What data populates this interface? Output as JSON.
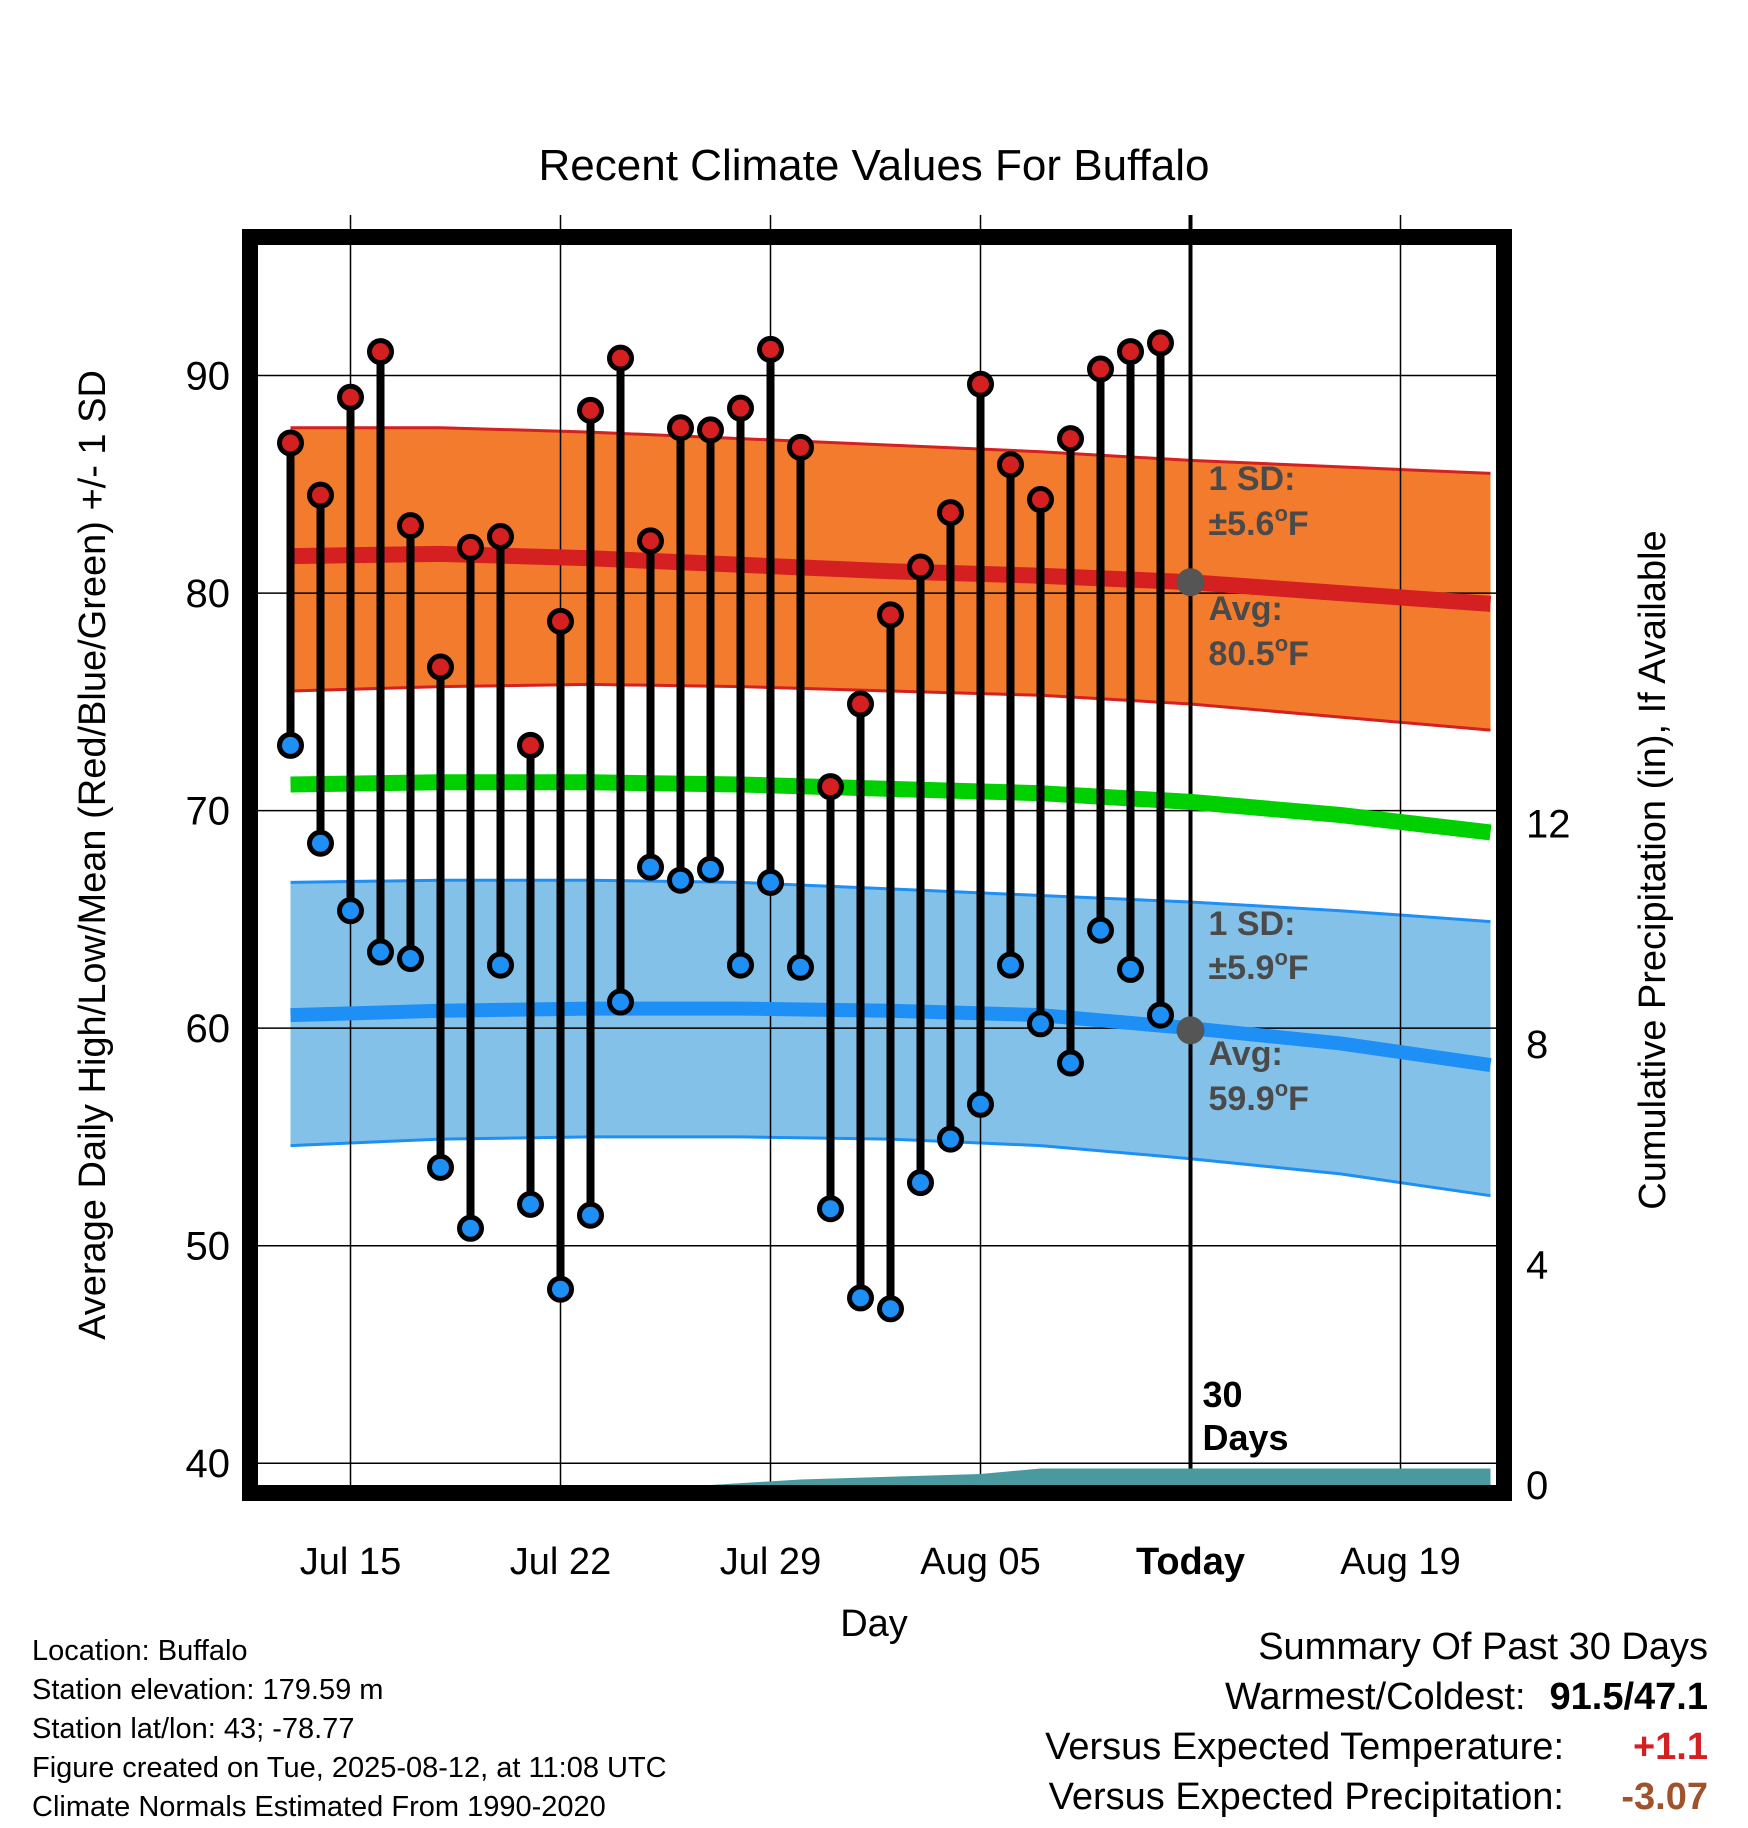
{
  "chart_data": {
    "type": "line",
    "title": "Recent Climate Values For Buffalo",
    "xlabel": "Day",
    "ylabel": "Average Daily High/Low/Mean (Red/Blue/Green) +/- 1 SD",
    "y2label": "Cumulative Precipitation (in), If Available",
    "ylim": [
      39,
      96
    ],
    "y2lim": [
      0,
      22.5
    ],
    "y_ticks": [
      "40",
      "50",
      "60",
      "70",
      "80",
      "90"
    ],
    "y2_ticks": [
      "0",
      "4",
      "8",
      "12"
    ],
    "x_ticks": [
      "Jul 15",
      "Jul 22",
      "Jul 29",
      "Aug 05",
      "Today",
      "Aug 19"
    ],
    "grid": true,
    "observations": {
      "highs": [
        86.9,
        84.5,
        89.0,
        91.1,
        83.1,
        76.6,
        82.1,
        82.6,
        73.0,
        78.7,
        88.4,
        90.8,
        82.4,
        87.6,
        87.5,
        88.5,
        91.2,
        86.7,
        71.1,
        74.9,
        79.0,
        81.2,
        83.7,
        89.6,
        85.9,
        84.3,
        87.1,
        90.3,
        91.1,
        91.5
      ],
      "lows": [
        73.0,
        68.5,
        65.4,
        63.5,
        63.2,
        53.6,
        50.8,
        62.9,
        51.9,
        48.0,
        51.4,
        61.2,
        67.4,
        66.8,
        67.3,
        62.9,
        66.7,
        62.8,
        51.7,
        47.6,
        47.1,
        52.9,
        54.9,
        56.5,
        62.9,
        60.2,
        58.4,
        64.5,
        62.7,
        60.6
      ]
    },
    "series": [
      {
        "name": "Avg High",
        "color": "#d42020",
        "x": [
          0,
          5,
          10,
          15,
          20,
          25,
          30,
          35,
          40
        ],
        "values": [
          81.7,
          81.8,
          81.6,
          81.3,
          81.0,
          80.8,
          80.5,
          80.0,
          79.5
        ]
      },
      {
        "name": "Avg Mean",
        "color": "#00d000",
        "x": [
          0,
          5,
          10,
          15,
          20,
          25,
          30,
          35,
          40
        ],
        "values": [
          71.2,
          71.3,
          71.3,
          71.2,
          71.0,
          70.8,
          70.4,
          69.8,
          69.0
        ]
      },
      {
        "name": "Avg Low",
        "color": "#1e8ff5",
        "x": [
          0,
          5,
          10,
          15,
          20,
          25,
          30,
          35,
          40
        ],
        "values": [
          60.6,
          60.8,
          60.9,
          60.9,
          60.8,
          60.6,
          60.0,
          59.3,
          58.3
        ]
      }
    ],
    "bands": {
      "high_upper": [
        87.6,
        87.6,
        87.4,
        87.1,
        86.8,
        86.5,
        86.1,
        85.8,
        85.5
      ],
      "high_lower": [
        75.5,
        75.7,
        75.8,
        75.7,
        75.5,
        75.3,
        74.9,
        74.3,
        73.7
      ],
      "low_upper": [
        66.7,
        66.8,
        66.8,
        66.7,
        66.4,
        66.1,
        65.8,
        65.4,
        64.9
      ],
      "low_lower": [
        54.6,
        54.9,
        55.0,
        55.0,
        54.9,
        54.6,
        54.0,
        53.3,
        52.3
      ]
    },
    "precip": {
      "x": [
        0,
        14,
        17,
        23,
        25,
        40
      ],
      "values": [
        0,
        0,
        0.1,
        0.2,
        0.3,
        0.3
      ],
      "color": "#4a999f"
    },
    "annotations": {
      "high_sd_label": "1 SD:",
      "high_sd_value": "±5.6",
      "high_avg_label": "Avg:",
      "high_avg_value": "80.5",
      "low_sd_label": "1 SD:",
      "low_sd_value": "±5.9",
      "low_avg_label": "Avg:",
      "low_avg_value": "59.9",
      "degree_o": "o",
      "unit_f": "F",
      "days_line1": "30",
      "days_line2": "Days"
    }
  },
  "footer": {
    "location": "Location: Buffalo",
    "elevation": "Station elevation: 179.59 m",
    "latlon": "Station lat/lon: 43; -78.77",
    "created": "Figure created on Tue, 2025-08-12, at 11:08 UTC",
    "normals": "Climate Normals Estimated From 1990-2020"
  },
  "summary": {
    "title": "Summary Of Past 30 Days",
    "warm_cold_label": "Warmest/Coldest:",
    "warm_cold_value": "91.5/47.1",
    "temp_label": "Versus Expected Temperature:",
    "temp_value": "+1.1",
    "temp_color": "#d42020",
    "precip_label": "Versus Expected Precipitation:",
    "precip_value": "-3.07",
    "precip_color": "#a0522d"
  }
}
